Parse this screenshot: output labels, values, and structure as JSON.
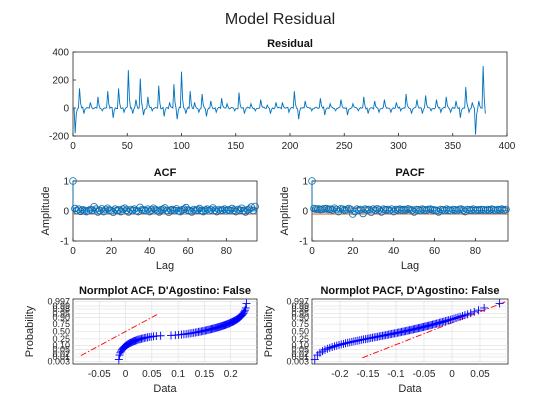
{
  "figure": {
    "title": "Model Residual"
  },
  "chart_data": [
    {
      "id": "residual",
      "type": "line",
      "title": "Residual",
      "xlabel": "",
      "ylabel": "",
      "xlim": [
        0,
        400
      ],
      "ylim": [
        -200,
        400
      ],
      "xticks": [
        0,
        50,
        100,
        150,
        200,
        250,
        300,
        350,
        400
      ],
      "yticks": [
        -200,
        0,
        200,
        400
      ],
      "color": "#0072BD",
      "n": 380,
      "spikes": [
        [
          1,
          -180
        ],
        [
          5,
          140
        ],
        [
          9,
          -40
        ],
        [
          15,
          40
        ],
        [
          22,
          80
        ],
        [
          26,
          -20
        ],
        [
          31,
          120
        ],
        [
          36,
          -70
        ],
        [
          41,
          140
        ],
        [
          46,
          -30
        ],
        [
          50,
          270
        ],
        [
          54,
          -40
        ],
        [
          57,
          60
        ],
        [
          61,
          210
        ],
        [
          64,
          -50
        ],
        [
          68,
          80
        ],
        [
          72,
          -20
        ],
        [
          78,
          160
        ],
        [
          83,
          -60
        ],
        [
          88,
          40
        ],
        [
          92,
          170
        ],
        [
          95,
          -80
        ],
        [
          99,
          260
        ],
        [
          103,
          -40
        ],
        [
          107,
          120
        ],
        [
          111,
          40
        ],
        [
          115,
          -30
        ],
        [
          118,
          100
        ],
        [
          122,
          -60
        ],
        [
          126,
          50
        ],
        [
          131,
          -30
        ],
        [
          136,
          70
        ],
        [
          141,
          30
        ],
        [
          148,
          -20
        ],
        [
          152,
          110
        ],
        [
          157,
          -40
        ],
        [
          163,
          30
        ],
        [
          167,
          -20
        ],
        [
          172,
          60
        ],
        [
          178,
          20
        ],
        [
          181,
          -40
        ],
        [
          186,
          40
        ],
        [
          192,
          40
        ],
        [
          198,
          -30
        ],
        [
          203,
          120
        ],
        [
          207,
          -80
        ],
        [
          213,
          50
        ],
        [
          219,
          -20
        ],
        [
          227,
          70
        ],
        [
          231,
          -50
        ],
        [
          236,
          30
        ],
        [
          241,
          -20
        ],
        [
          246,
          60
        ],
        [
          252,
          -50
        ],
        [
          257,
          30
        ],
        [
          262,
          -20
        ],
        [
          267,
          80
        ],
        [
          271,
          -40
        ],
        [
          277,
          50
        ],
        [
          281,
          -30
        ],
        [
          286,
          60
        ],
        [
          292,
          -30
        ],
        [
          297,
          40
        ],
        [
          301,
          -20
        ],
        [
          306,
          100
        ],
        [
          311,
          -40
        ],
        [
          316,
          60
        ],
        [
          321,
          -40
        ],
        [
          324,
          90
        ],
        [
          329,
          -20
        ],
        [
          334,
          60
        ],
        [
          338,
          -30
        ],
        [
          343,
          80
        ],
        [
          347,
          -30
        ],
        [
          352,
          50
        ],
        [
          356,
          -70
        ],
        [
          361,
          150
        ],
        [
          364,
          -30
        ],
        [
          367,
          40
        ],
        [
          370,
          -190
        ],
        [
          373,
          50
        ],
        [
          377,
          300
        ],
        [
          379,
          -40
        ]
      ]
    },
    {
      "id": "acf",
      "type": "stem",
      "title": "ACF",
      "xlabel": "Lag",
      "ylabel": "Amplitude",
      "xlim": [
        0,
        96
      ],
      "ylim": [
        -1,
        1
      ],
      "xticks": [
        0,
        20,
        40,
        60,
        80
      ],
      "yticks": [
        -1,
        0,
        1
      ],
      "values": [
        1.0,
        0.08,
        0.02,
        0.06,
        -0.01,
        0.04,
        0.02,
        -0.02,
        0.01,
        0.05,
        0.03,
        0.14,
        0.06,
        -0.03,
        0.02,
        0.07,
        -0.02,
        0.05,
        0.09,
        0.03,
        0.01,
        -0.04,
        0.06,
        0.02,
        0.04,
        -0.02,
        0.06,
        0.09,
        0.03,
        -0.03,
        0.05,
        0.02,
        0.06,
        0.01,
        -0.02,
        0.12,
        0.04,
        0.03,
        0.01,
        0.06,
        -0.02,
        0.04,
        0.09,
        0.05,
        0.02,
        -0.03,
        0.04,
        0.06,
        0.1,
        0.02,
        -0.04,
        0.03,
        0.05,
        0.02,
        0.07,
        0.01,
        -0.02,
        0.04,
        0.06,
        0.11,
        0.03,
        0.01,
        -0.03,
        0.05,
        0.02,
        0.04,
        0.08,
        0.02,
        -0.02,
        0.03,
        0.06,
        0.01,
        0.04,
        0.1,
        0.03,
        -0.02,
        0.05,
        0.02,
        0.03,
        0.06,
        0.01,
        0.04,
        0.02,
        0.08,
        0.03,
        -0.02,
        0.05,
        0.03,
        0.09,
        0.02,
        -0.03,
        0.04,
        0.06,
        0.13,
        0.02,
        0.15
      ],
      "bounds": [
        0.1,
        -0.1
      ],
      "color": "#0072BD",
      "bound_color": "#D95319"
    },
    {
      "id": "pacf",
      "type": "stem",
      "title": "PACF",
      "xlabel": "Lag",
      "ylabel": "Amplitude",
      "xlim": [
        0,
        96
      ],
      "ylim": [
        -1,
        1
      ],
      "xticks": [
        0,
        20,
        40,
        60,
        80
      ],
      "yticks": [
        -1,
        0,
        1
      ],
      "values": [
        1.0,
        0.08,
        0.06,
        0.07,
        0.05,
        0.06,
        0.07,
        0.08,
        0.05,
        0.06,
        0.04,
        0.09,
        0.05,
        -0.02,
        0.07,
        0.06,
        0.03,
        0.05,
        0.08,
        0.05,
        -0.1,
        -0.02,
        0.06,
        0.03,
        0.05,
        -0.08,
        0.06,
        0.04,
        0.05,
        -0.04,
        0.06,
        0.03,
        0.07,
        0.04,
        -0.03,
        0.06,
        0.04,
        0.05,
        0.02,
        0.06,
        -0.02,
        0.05,
        0.04,
        0.06,
        0.03,
        0.05,
        0.04,
        0.07,
        0.05,
        0.03,
        -0.03,
        0.05,
        0.04,
        0.02,
        0.06,
        0.04,
        0.03,
        0.05,
        0.06,
        0.04,
        0.03,
        0.02,
        -0.03,
        0.05,
        0.04,
        0.02,
        0.06,
        0.03,
        0.01,
        0.05,
        0.04,
        0.02,
        0.05,
        0.06,
        0.03,
        -0.02,
        0.05,
        0.04,
        0.03,
        0.06,
        0.02,
        0.04,
        0.03,
        0.05,
        0.04,
        0.02,
        0.05,
        0.03,
        0.06,
        0.04,
        0.02,
        0.05,
        0.04,
        0.06,
        0.03,
        0.05
      ],
      "bounds": [
        0.1,
        -0.1
      ],
      "color": "#0072BD",
      "bound_color": "#D95319"
    },
    {
      "id": "normplot_acf",
      "type": "scatter",
      "title": "Normplot ACF, D'Agostino: False",
      "xlabel": "Data",
      "ylabel": "Probability",
      "xlim": [
        -0.1,
        0.25
      ],
      "xticks": [
        -0.05,
        0,
        0.05,
        0.1,
        0.15,
        0.2
      ],
      "xticklabels": [
        "-0.05",
        "0",
        "0.05",
        "0.1",
        "0.15",
        "0.2"
      ],
      "yticks": [
        0.003,
        0.01,
        0.02,
        0.05,
        0.1,
        0.25,
        0.5,
        0.75,
        0.9,
        0.95,
        0.98,
        0.99,
        0.997
      ],
      "yticklabels": [
        "0.003",
        "0.01",
        "0.02",
        "0.05",
        "0.10",
        "0.25",
        "0.50",
        "0.75",
        "0.90",
        "0.95",
        "0.98",
        "0.99",
        "0.997"
      ],
      "sample_min": -0.085,
      "sample_max": 0.23,
      "fit_line": [
        [
          -0.085,
          -2.2
        ],
        [
          0.06,
          1.55
        ]
      ],
      "color": "#0000FF",
      "fit_color": "#FF0000"
    },
    {
      "id": "normplot_pacf",
      "type": "scatter",
      "title": "Normplot PACF, D'Agostino: False",
      "xlabel": "Data",
      "ylabel": "Probability",
      "xlim": [
        -0.25,
        0.1
      ],
      "xticks": [
        -0.2,
        -0.15,
        -0.1,
        -0.05,
        0,
        0.05
      ],
      "xticklabels": [
        "-0.2",
        "-0.15",
        "-0.1",
        "-0.05",
        "0",
        "0.05"
      ],
      "yticks": [
        0.003,
        0.01,
        0.02,
        0.05,
        0.1,
        0.25,
        0.5,
        0.75,
        0.9,
        0.95,
        0.98,
        0.99,
        0.997
      ],
      "yticklabels": [
        "0.003",
        "0.01",
        "0.02",
        "0.05",
        "0.10",
        "0.25",
        "0.50",
        "0.75",
        "0.90",
        "0.95",
        "0.98",
        "0.99",
        "0.997"
      ],
      "sample_min": -0.245,
      "sample_max": 0.085,
      "fit_line": [
        [
          -0.16,
          -2.4
        ],
        [
          0.095,
          2.7
        ]
      ],
      "color": "#0000FF",
      "fit_color": "#FF0000"
    }
  ]
}
